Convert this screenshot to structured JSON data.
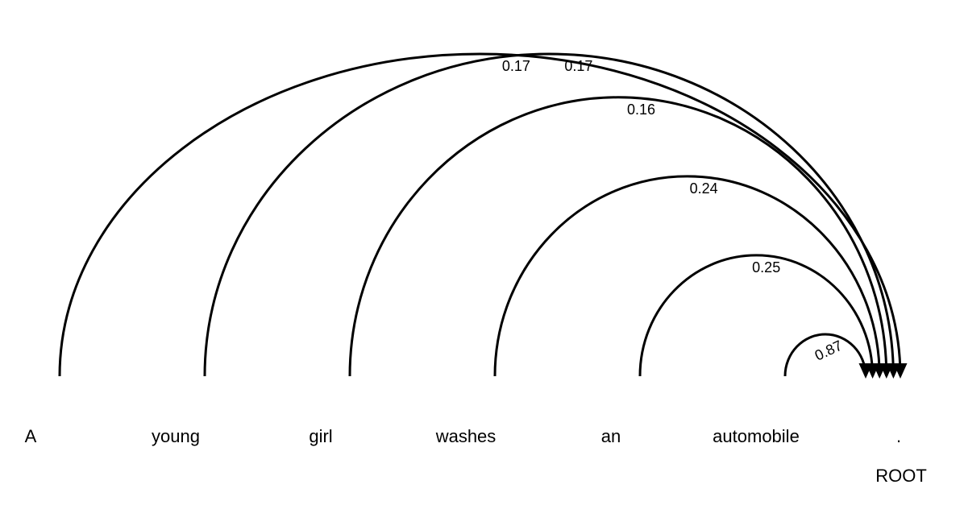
{
  "diagram": {
    "tokens": [
      "A",
      "young",
      "girl",
      "washes",
      "an",
      "automobile",
      "."
    ],
    "root_label": "ROOT",
    "edges": [
      {
        "from": 0,
        "to": 6,
        "weight": "0.17"
      },
      {
        "from": 1,
        "to": 6,
        "weight": "0.17"
      },
      {
        "from": 2,
        "to": 6,
        "weight": "0.16"
      },
      {
        "from": 3,
        "to": 6,
        "weight": "0.24"
      },
      {
        "from": 4,
        "to": 6,
        "weight": "0.25"
      },
      {
        "from": 5,
        "to": 6,
        "weight": "0.87"
      }
    ],
    "colors": {
      "stroke": "#000000",
      "text": "#000000"
    }
  }
}
